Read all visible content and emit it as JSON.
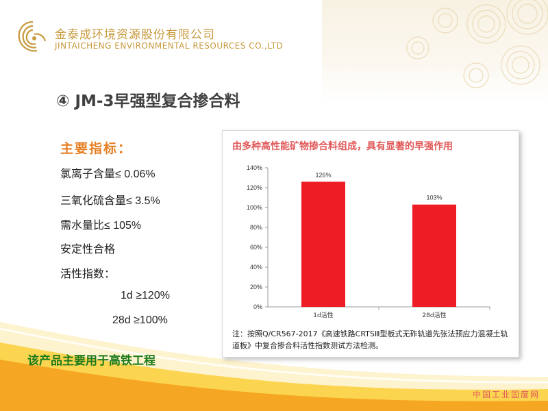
{
  "company": {
    "name_cn": "金泰成环境资源股份有限公司",
    "name_en": "JINTAICHENG ENVIRONMENTAL RESOURCES CO.,LTD"
  },
  "slide": {
    "title": "④ JM-3早强型复合掺合料"
  },
  "indicators": {
    "heading": "主要指标：",
    "items": [
      "氯离子含量≤ 0.06%",
      "三氧化硫含量≤ 3.5%",
      "需水量比≤ 105%",
      "安定性合格",
      "活性指数："
    ],
    "sub_items": [
      "1d ≥120%",
      "28d ≥100%"
    ]
  },
  "usage_note": "该产品主要用于高铁工程",
  "panel": {
    "title": "由多种高性能矿物掺合料组成，具有显著的早强作用",
    "note": "注：按照Q/CR567-2017《高速铁路CRTSⅢ型板式无砟轨道先张法预应力混凝土轨道板》中复合掺合料活性指数测试方法检测。"
  },
  "chart_data": {
    "type": "bar",
    "categories": [
      "1d活性",
      "28d活性"
    ],
    "values": [
      126,
      103
    ],
    "data_labels": [
      "126%",
      "103%"
    ],
    "ylim": [
      0,
      140
    ],
    "yticks": [
      "0%",
      "20%",
      "40%",
      "60%",
      "80%",
      "100%",
      "120%",
      "140%"
    ],
    "grid": false,
    "bar_color": "#ee1c24"
  },
  "watermark": "中国工业固废网",
  "colors": {
    "brand_gold": "#c79a3d",
    "heading_orange": "#e67e22",
    "note_green": "#1a7a1a",
    "panel_title_red": "#e05a5a"
  }
}
